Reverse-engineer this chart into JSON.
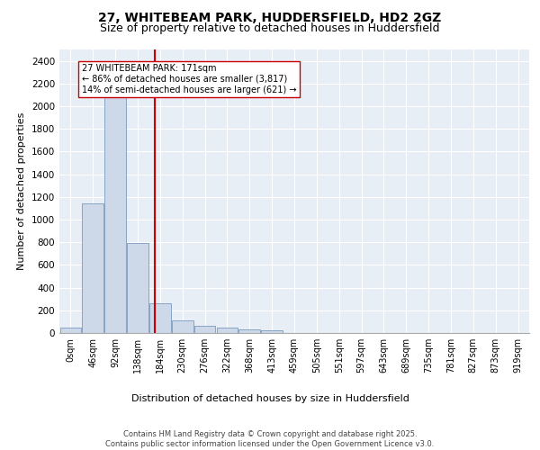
{
  "title1": "27, WHITEBEAM PARK, HUDDERSFIELD, HD2 2GZ",
  "title2": "Size of property relative to detached houses in Huddersfield",
  "xlabel": "Distribution of detached houses by size in Huddersfield",
  "ylabel": "Number of detached properties",
  "bar_color": "#cdd8e8",
  "bar_edge_color": "#7a9bbf",
  "bg_color": "#e8eef5",
  "grid_color": "#ffffff",
  "vline_color": "#cc0000",
  "vline_x": 3.75,
  "annotation_text": "27 WHITEBEAM PARK: 171sqm\n← 86% of detached houses are smaller (3,817)\n14% of semi-detached houses are larger (621) →",
  "annotation_box_color": "#ffffff",
  "annotation_box_edge": "#cc0000",
  "categories": [
    "0sqm",
    "46sqm",
    "92sqm",
    "138sqm",
    "184sqm",
    "230sqm",
    "276sqm",
    "322sqm",
    "368sqm",
    "413sqm",
    "459sqm",
    "505sqm",
    "551sqm",
    "597sqm",
    "643sqm",
    "689sqm",
    "735sqm",
    "781sqm",
    "827sqm",
    "873sqm",
    "919sqm"
  ],
  "values": [
    50,
    1140,
    2150,
    790,
    260,
    110,
    65,
    50,
    30,
    20,
    0,
    0,
    0,
    0,
    0,
    0,
    0,
    0,
    0,
    0,
    0
  ],
  "ylim": [
    0,
    2500
  ],
  "yticks": [
    0,
    200,
    400,
    600,
    800,
    1000,
    1200,
    1400,
    1600,
    1800,
    2000,
    2200,
    2400
  ],
  "footer1": "Contains HM Land Registry data © Crown copyright and database right 2025.",
  "footer2": "Contains public sector information licensed under the Open Government Licence v3.0.",
  "title1_fontsize": 10,
  "title2_fontsize": 9,
  "ylabel_fontsize": 8,
  "xlabel_fontsize": 8,
  "tick_fontsize": 7,
  "footer_fontsize": 6,
  "annot_fontsize": 7
}
